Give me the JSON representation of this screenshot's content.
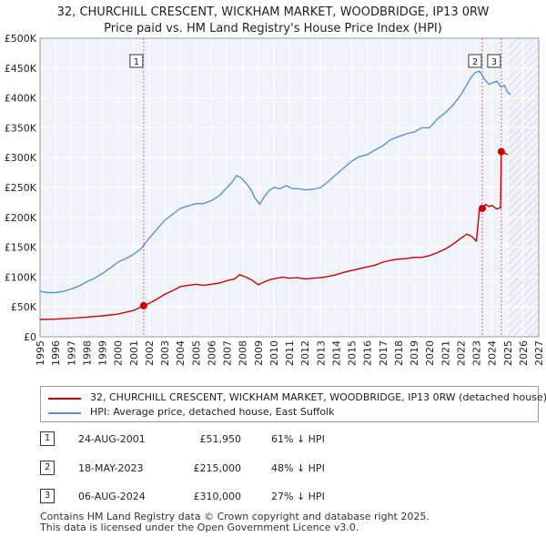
{
  "chart_data": {
    "type": "line",
    "title": "32, CHURCHILL CRESCENT, WICKHAM MARKET, WOODBRIDGE, IP13 0RW",
    "subtitle": "Price paid vs. HM Land Registry's House Price Index (HPI)",
    "xlim": [
      1995,
      2027
    ],
    "ylim": [
      0,
      500000
    ],
    "x_ticks": [
      1995,
      1996,
      1997,
      1998,
      1999,
      2000,
      2001,
      2002,
      2003,
      2004,
      2005,
      2006,
      2007,
      2008,
      2009,
      2010,
      2011,
      2012,
      2013,
      2014,
      2015,
      2016,
      2017,
      2018,
      2019,
      2020,
      2021,
      2022,
      2023,
      2024,
      2025,
      2026,
      2027
    ],
    "y_ticks": [
      0,
      50000,
      100000,
      150000,
      200000,
      250000,
      300000,
      350000,
      400000,
      450000,
      500000
    ],
    "y_tick_labels": [
      "£0",
      "£50K",
      "£100K",
      "£150K",
      "£200K",
      "£250K",
      "£300K",
      "£350K",
      "£400K",
      "£450K",
      "£500K"
    ],
    "hatch_from": 2025.0,
    "series": [
      {
        "name": "32, CHURCHILL CRESCENT, WICKHAM MARKET, WOODBRIDGE, IP13 0RW (detached house)",
        "color": "#cc0000",
        "x": [
          1995.0,
          1996.0,
          1997.0,
          1998.0,
          1999.0,
          2000.0,
          2001.0,
          2001.65,
          2002.0,
          2002.5,
          2003.0,
          2003.5,
          2004.0,
          2004.5,
          2005.0,
          2005.5,
          2006.0,
          2006.5,
          2007.0,
          2007.5,
          2007.8,
          2008.2,
          2008.6,
          2009.0,
          2009.4,
          2009.8,
          2010.2,
          2010.6,
          2011.0,
          2011.5,
          2012.0,
          2012.5,
          2013.0,
          2013.5,
          2014.0,
          2014.5,
          2015.0,
          2015.5,
          2016.0,
          2016.5,
          2017.0,
          2017.5,
          2018.0,
          2018.5,
          2019.0,
          2019.5,
          2020.0,
          2020.5,
          2021.0,
          2021.5,
          2022.0,
          2022.4,
          2022.7,
          2023.0,
          2023.2,
          2023.38,
          2023.6,
          2023.8,
          2024.0,
          2024.3,
          2024.55,
          2024.6,
          2024.8,
          2025.0
        ],
        "values": [
          29000,
          29500,
          31000,
          33000,
          35000,
          38000,
          44000,
          51950,
          56000,
          63000,
          71000,
          77000,
          84000,
          86000,
          88000,
          86000,
          88000,
          90000,
          94000,
          97000,
          104000,
          100000,
          95000,
          87000,
          92000,
          96000,
          98000,
          100000,
          98000,
          99000,
          97000,
          98000,
          99000,
          101000,
          104000,
          108000,
          111000,
          114000,
          117000,
          120000,
          125000,
          128000,
          130000,
          131000,
          133000,
          133000,
          136000,
          141000,
          147000,
          155000,
          165000,
          172000,
          168000,
          160000,
          215000,
          215000,
          222000,
          218000,
          220000,
          214000,
          216000,
          310000,
          308000,
          305000
        ]
      },
      {
        "name": "HPI: Average price, detached house, East Suffolk",
        "color": "#5b8fd4",
        "x": [
          1995.0,
          1995.5,
          1996.0,
          1996.5,
          1997.0,
          1997.5,
          1998.0,
          1998.5,
          1999.0,
          1999.5,
          2000.0,
          2000.5,
          2001.0,
          2001.5,
          2002.0,
          2002.5,
          2003.0,
          2003.5,
          2004.0,
          2004.5,
          2005.0,
          2005.5,
          2006.0,
          2006.5,
          2007.0,
          2007.3,
          2007.6,
          2007.9,
          2008.2,
          2008.5,
          2008.8,
          2009.1,
          2009.4,
          2009.7,
          2010.0,
          2010.4,
          2010.8,
          2011.2,
          2011.6,
          2012.0,
          2012.5,
          2013.0,
          2013.5,
          2014.0,
          2014.5,
          2015.0,
          2015.5,
          2016.0,
          2016.5,
          2017.0,
          2017.5,
          2018.0,
          2018.5,
          2019.0,
          2019.5,
          2020.0,
          2020.5,
          2021.0,
          2021.5,
          2022.0,
          2022.3,
          2022.6,
          2022.9,
          2023.2,
          2023.5,
          2023.8,
          2024.0,
          2024.3,
          2024.6,
          2024.8,
          2025.0,
          2025.2
        ],
        "values": [
          76000,
          74000,
          74000,
          76000,
          80000,
          85000,
          92000,
          98000,
          106000,
          115000,
          125000,
          131000,
          138000,
          148000,
          165000,
          180000,
          195000,
          205000,
          215000,
          219000,
          223000,
          223000,
          228000,
          236000,
          250000,
          258000,
          270000,
          266000,
          258000,
          248000,
          232000,
          222000,
          235000,
          245000,
          250000,
          248000,
          253000,
          248000,
          248000,
          246000,
          247000,
          250000,
          260000,
          272000,
          283000,
          294000,
          302000,
          305000,
          313000,
          320000,
          330000,
          335000,
          340000,
          343000,
          350000,
          350000,
          365000,
          375000,
          388000,
          405000,
          418000,
          432000,
          442000,
          445000,
          432000,
          423000,
          425000,
          428000,
          418000,
          421000,
          410000,
          405000
        ]
      }
    ],
    "markers": [
      {
        "label": "1",
        "x": 2001.65,
        "value": 51950
      },
      {
        "label": "2",
        "x": 2023.38,
        "value": 215000
      },
      {
        "label": "3",
        "x": 2024.6,
        "value": 310000
      }
    ]
  },
  "title_line1": "32, CHURCHILL CRESCENT, WICKHAM MARKET, WOODBRIDGE, IP13 0RW",
  "title_line2": "Price paid vs. HM Land Registry's House Price Index (HPI)",
  "legend": {
    "property": "32, CHURCHILL CRESCENT, WICKHAM MARKET, WOODBRIDGE, IP13 0RW (detached house)",
    "hpi": "HPI: Average price, detached house, East Suffolk",
    "property_color": "#cc0000",
    "hpi_color": "#5b8fd4"
  },
  "transactions": [
    {
      "num": "1",
      "date": "24-AUG-2001",
      "price": "£51,950",
      "pct": "61% ↓ HPI"
    },
    {
      "num": "2",
      "date": "18-MAY-2023",
      "price": "£215,000",
      "pct": "48% ↓ HPI"
    },
    {
      "num": "3",
      "date": "06-AUG-2024",
      "price": "£310,000",
      "pct": "27% ↓ HPI"
    }
  ],
  "footer": {
    "line1": "Contains HM Land Registry data © Crown copyright and database right 2025.",
    "line2": "This data is licensed under the Open Government Licence v3.0."
  }
}
